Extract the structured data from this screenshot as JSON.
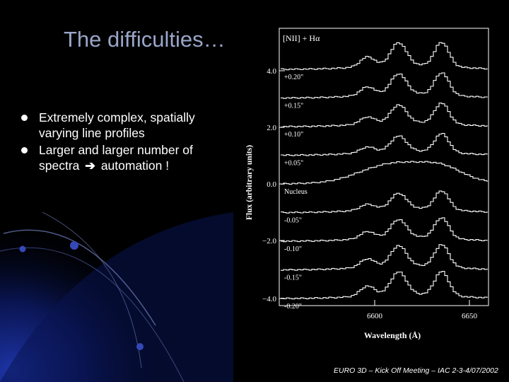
{
  "slide": {
    "title": "The difficulties…",
    "bullets": [
      {
        "text": "Extremely complex, spatially varying line profiles"
      },
      {
        "pre": "Larger and larger number of spectra",
        "arrow": "➔",
        "post": "automation !"
      }
    ],
    "footer": "EURO 3D – Kick Off Meeting – IAC 2-3-4/07/2002"
  },
  "figure": {
    "panel_label": "[NII] + Hα",
    "ylabel": "Flux (arbitrary units)",
    "xlabel": "Wavelength (Å)",
    "xticks": [
      "6600",
      "6650"
    ],
    "yticks": [
      "4.0",
      "2.0",
      "0.0",
      "−2.0",
      "−4.0"
    ],
    "spectra_labels": [
      "+0.20\"",
      "+0.15\"",
      "+0.10\"",
      "+0.05\"",
      "Nucleus",
      "-0.05\"",
      "-0.10\"",
      "-0.15\"",
      "-0.20\""
    ]
  },
  "colors": {
    "background": "#000000",
    "title": "#9aa6c8",
    "text": "#ffffff",
    "swoosh": "#1a2f9a"
  }
}
